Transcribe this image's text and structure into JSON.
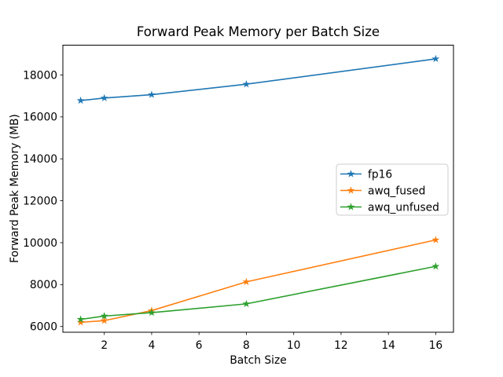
{
  "figure": {
    "title": "Forward Peak Memory per Batch Size",
    "xlabel": "Batch Size",
    "ylabel": "Forward Peak Memory (MB)"
  },
  "chart_data": {
    "type": "line",
    "title": "Forward Peak Memory per Batch Size",
    "xlabel": "Batch Size",
    "ylabel": "Forward Peak Memory (MB)",
    "x": [
      1,
      2,
      4,
      8,
      16
    ],
    "series": [
      {
        "name": "fp16",
        "color": "#1f77b4",
        "values": [
          16780,
          16900,
          17060,
          17560,
          18770
        ]
      },
      {
        "name": "awq_fused",
        "color": "#ff7f0e",
        "values": [
          6200,
          6280,
          6760,
          8130,
          10130
        ]
      },
      {
        "name": "awq_unfused",
        "color": "#2ca02c",
        "values": [
          6340,
          6500,
          6660,
          7080,
          8870
        ]
      }
    ],
    "marker": "star",
    "xticks": [
      2,
      4,
      6,
      8,
      10,
      12,
      14,
      16
    ],
    "yticks": [
      6000,
      8000,
      10000,
      12000,
      14000,
      16000,
      18000
    ],
    "xlim": [
      0.25,
      16.75
    ],
    "ylim": [
      5727,
      19423
    ],
    "grid": false,
    "legend_position": "center-right"
  },
  "colors": {
    "background": "#ffffff",
    "spine": "#000000",
    "text": "#000000",
    "legend_border": "#cccccc",
    "legend_fill": "#ffffff"
  }
}
